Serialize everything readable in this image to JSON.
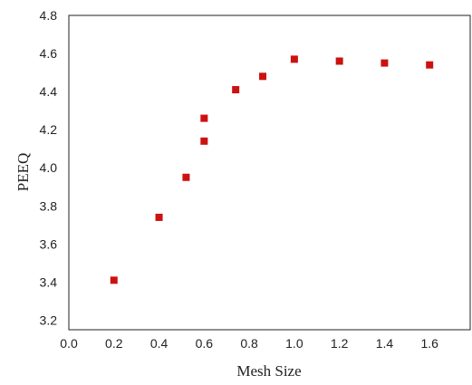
{
  "chart_data": {
    "type": "scatter",
    "xlabel": "Mesh Size",
    "ylabel": "PEEQ",
    "xlim": [
      0.0,
      1.78
    ],
    "ylim": [
      3.15,
      4.8
    ],
    "xticks": [
      "0.0",
      "0.2",
      "0.4",
      "0.6",
      "0.8",
      "1.0",
      "1.2",
      "1.4",
      "1.6"
    ],
    "yticks": [
      "3.2",
      "3.4",
      "3.6",
      "3.8",
      "4.0",
      "4.2",
      "4.4",
      "4.6",
      "4.8"
    ],
    "grid": false,
    "marker_color": "#cc1111",
    "series": [
      {
        "points": [
          {
            "x": 0.2,
            "y": 3.41
          },
          {
            "x": 0.4,
            "y": 3.74
          },
          {
            "x": 0.52,
            "y": 3.95
          },
          {
            "x": 0.6,
            "y": 4.14
          },
          {
            "x": 0.6,
            "y": 4.26
          },
          {
            "x": 0.74,
            "y": 4.41
          },
          {
            "x": 0.86,
            "y": 4.48
          },
          {
            "x": 1.0,
            "y": 4.57
          },
          {
            "x": 1.2,
            "y": 4.56
          },
          {
            "x": 1.4,
            "y": 4.55
          },
          {
            "x": 1.6,
            "y": 4.54
          }
        ]
      }
    ]
  }
}
